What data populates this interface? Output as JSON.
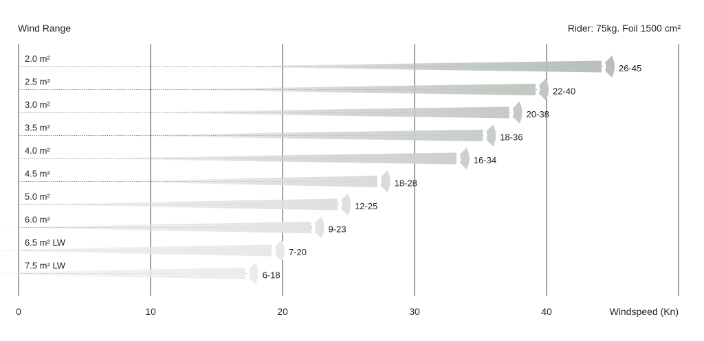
{
  "header": {
    "title": "Wind Range",
    "subtitle": "Rider: 75kg. Foil 1500 cm²"
  },
  "colors": {
    "bar_light": "#eeeeec",
    "bar_dark": "#b7bfb8",
    "grid": "#444444",
    "dotted": "#555555"
  },
  "chart_data": {
    "type": "bar",
    "title": "Wind Range",
    "subtitle": "Rider: 75kg. Foil 1500 cm²",
    "xlabel": "Windspeed (Kn)",
    "ylabel": "",
    "xlim": [
      0,
      50
    ],
    "xticks": [
      0,
      10,
      20,
      30,
      40
    ],
    "grid": "vertical",
    "categories": [
      "2.0 m²",
      "2.5 m²",
      "3.0 m²",
      "3.5 m²",
      "4.0 m²",
      "4.5 m²",
      "5.0 m²",
      "6.0 m²",
      "6.5 m² LW",
      "7.5 m² LW"
    ],
    "ranges": [
      [
        26,
        45
      ],
      [
        22,
        40
      ],
      [
        20,
        38
      ],
      [
        18,
        36
      ],
      [
        16,
        34
      ],
      [
        18,
        28
      ],
      [
        12,
        25
      ],
      [
        9,
        23
      ],
      [
        7,
        20
      ],
      [
        6,
        18
      ]
    ],
    "range_labels": [
      "26-45",
      "22-40",
      "20-38",
      "18-36",
      "16-34",
      "18-28",
      "12-25",
      "9-23",
      "7-20",
      "6-18"
    ]
  }
}
